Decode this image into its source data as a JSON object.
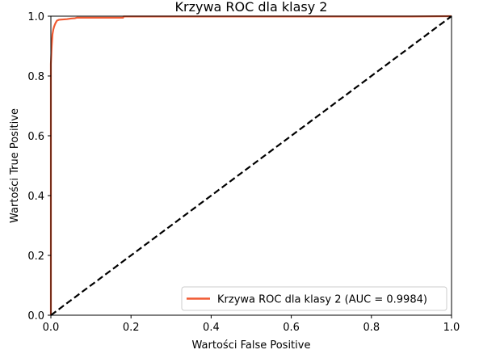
{
  "chart_data": {
    "type": "line",
    "title": "Krzywa ROC dla klasy 2",
    "xlabel": "Wartości False Positive",
    "ylabel": "Wartości True Positive",
    "xlim": [
      0.0,
      1.0
    ],
    "ylim": [
      0.0,
      1.0
    ],
    "xticks": [
      "0.0",
      "0.2",
      "0.4",
      "0.6",
      "0.8",
      "1.0"
    ],
    "yticks": [
      "0.0",
      "0.2",
      "0.4",
      "0.6",
      "0.8",
      "1.0"
    ],
    "grid": false,
    "legend_position": "bottom-right",
    "series": [
      {
        "name": "Krzywa ROC dla klasy 2 (AUC = 0.9984)",
        "color": "#f05a32",
        "style": "solid",
        "x": [
          0.0,
          0.0,
          0.001,
          0.002,
          0.003,
          0.004,
          0.006,
          0.008,
          0.01,
          0.012,
          0.015,
          0.02,
          0.03,
          0.04,
          0.05,
          0.06,
          0.065,
          0.08,
          0.1,
          0.15,
          0.18,
          0.182,
          0.3,
          0.5,
          0.7,
          0.9,
          1.0
        ],
        "y": [
          0.0,
          0.84,
          0.87,
          0.9,
          0.92,
          0.94,
          0.955,
          0.965,
          0.972,
          0.978,
          0.985,
          0.988,
          0.989,
          0.99,
          0.992,
          0.993,
          0.995,
          0.995,
          0.995,
          0.995,
          0.995,
          0.999,
          0.999,
          0.999,
          0.999,
          0.999,
          1.0
        ]
      },
      {
        "name": "",
        "color": "#000000",
        "style": "dashed",
        "x": [
          0.0,
          1.0
        ],
        "y": [
          0.0,
          1.0
        ]
      }
    ]
  }
}
